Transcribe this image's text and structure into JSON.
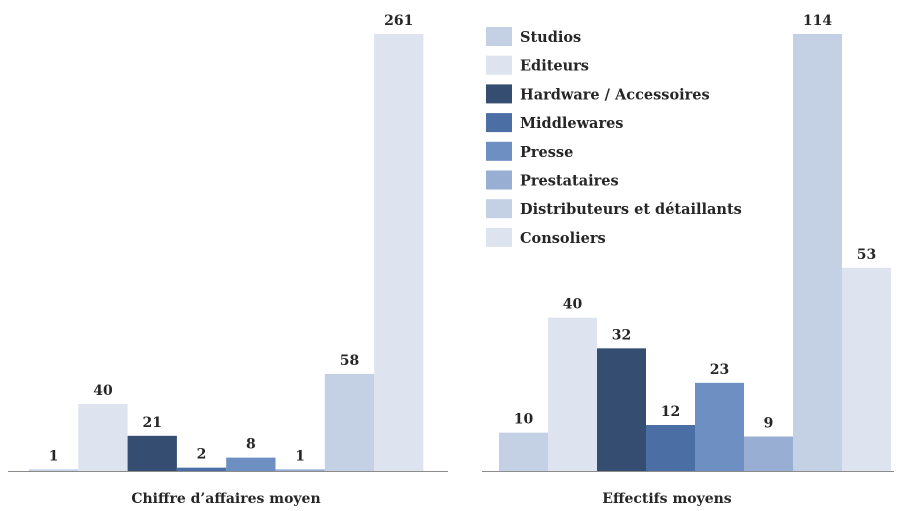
{
  "chart_data": [
    {
      "type": "bar",
      "xlabel": "Chiffre d’affaires moyen",
      "categories": [
        "Studios",
        "Editeurs",
        "Hardware / Accessoires",
        "Middlewares",
        "Presse",
        "Prestataires",
        "Distributeurs et détaillants",
        "Consoliers"
      ],
      "values": [
        1,
        40,
        21,
        2,
        8,
        1,
        58,
        261
      ],
      "ylim": [
        0,
        261
      ]
    },
    {
      "type": "bar",
      "xlabel": "Effectifs moyens",
      "categories": [
        "Studios",
        "Editeurs",
        "Hardware / Accessoires",
        "Middlewares",
        "Presse",
        "Prestataires",
        "Distributeurs et détaillants",
        "Consoliers"
      ],
      "values": [
        10,
        40,
        32,
        12,
        23,
        9,
        114,
        53
      ],
      "ylim": [
        0,
        114
      ]
    }
  ],
  "legend": {
    "placement": "top-right",
    "items": [
      "Studios",
      "Editeurs",
      "Hardware / Accessoires",
      "Middlewares",
      "Presse",
      "Prestataires",
      "Distributeurs et détaillants",
      "Consoliers"
    ]
  },
  "colors": [
    "#c4d0e4",
    "#dde3ef",
    "#364d72",
    "#4b6ea4",
    "#6e8fc1",
    "#98afd3",
    "#c4d0e4",
    "#dde3ef"
  ]
}
